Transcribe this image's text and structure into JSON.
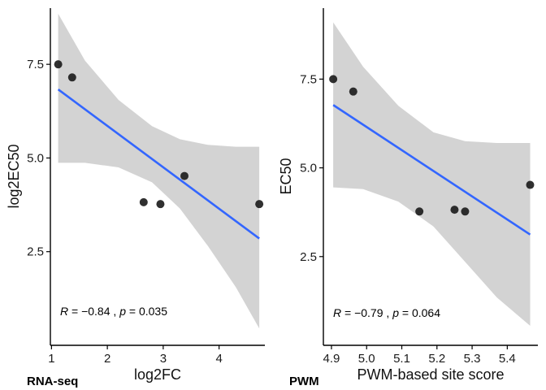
{
  "chart_data": [
    {
      "type": "scatter",
      "panel_tag": "RNA-seq",
      "xlabel": "log2FC",
      "ylabel": "log2EC50",
      "xlim": [
        0.98,
        4.82
      ],
      "ylim": [
        0.0,
        9.0
      ],
      "x_ticks": [
        1,
        2,
        3,
        4
      ],
      "x_tick_labels": [
        "1",
        "2",
        "3",
        "4"
      ],
      "y_ticks": [
        2.5,
        5.0,
        7.5
      ],
      "y_tick_labels": [
        "2.5",
        "5.0",
        "7.5"
      ],
      "points": [
        {
          "x": 1.12,
          "y": 7.5
        },
        {
          "x": 1.37,
          "y": 7.15
        },
        {
          "x": 2.65,
          "y": 3.82
        },
        {
          "x": 2.95,
          "y": 3.77
        },
        {
          "x": 3.38,
          "y": 4.52
        },
        {
          "x": 4.72,
          "y": 3.77
        }
      ],
      "fit_line": {
        "x": [
          1.12,
          4.72
        ],
        "y": [
          6.83,
          2.85
        ]
      },
      "confidence_band": {
        "x": [
          1.12,
          1.6,
          2.2,
          2.8,
          3.3,
          3.8,
          4.3,
          4.72
        ],
        "upper": [
          8.85,
          7.6,
          6.55,
          5.85,
          5.5,
          5.35,
          5.3,
          5.3
        ],
        "lower": [
          4.87,
          4.87,
          4.75,
          4.35,
          3.65,
          2.65,
          1.55,
          0.45
        ]
      },
      "annotation": {
        "r_label": "R",
        "r_value": " = −0.84 , ",
        "p_label": "p",
        "p_value": " = 0.035"
      },
      "grid": false
    },
    {
      "type": "scatter",
      "panel_tag": "PWM",
      "xlabel": "PWM-based site score",
      "ylabel": "EC50",
      "xlim": [
        4.877,
        5.487
      ],
      "ylim": [
        0.0,
        9.5
      ],
      "x_ticks": [
        4.9,
        5.0,
        5.1,
        5.2,
        5.3,
        5.4
      ],
      "x_tick_labels": [
        "4.9",
        "5.0",
        "5.1",
        "5.2",
        "5.3",
        "5.4"
      ],
      "y_ticks": [
        2.5,
        5.0,
        7.5
      ],
      "y_tick_labels": [
        "2.5",
        "5.0",
        "7.5"
      ],
      "points": [
        {
          "x": 4.905,
          "y": 7.5
        },
        {
          "x": 4.962,
          "y": 7.15
        },
        {
          "x": 5.15,
          "y": 3.77
        },
        {
          "x": 5.25,
          "y": 3.82
        },
        {
          "x": 5.28,
          "y": 3.77
        },
        {
          "x": 5.465,
          "y": 4.52
        }
      ],
      "fit_line": {
        "x": [
          4.905,
          5.465
        ],
        "y": [
          6.77,
          3.12
        ]
      },
      "confidence_band": {
        "x": [
          4.905,
          4.99,
          5.09,
          5.19,
          5.28,
          5.37,
          5.465
        ],
        "upper": [
          9.1,
          7.85,
          6.75,
          6.0,
          5.75,
          5.7,
          5.7
        ],
        "lower": [
          4.45,
          4.4,
          4.05,
          3.35,
          2.35,
          1.35,
          0.55
        ]
      },
      "annotation": {
        "r_label": "R",
        "r_value": " = −0.79 , ",
        "p_label": "p",
        "p_value": " = 0.064"
      },
      "grid": false
    }
  ],
  "colors": {
    "point": "#1a1a1a",
    "fit_line": "#3366ff",
    "band": "#d3d3d3",
    "axis": "#000000"
  }
}
